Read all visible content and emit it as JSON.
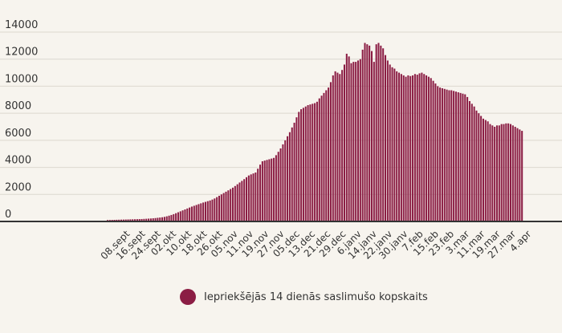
{
  "chart_data": {
    "type": "bar",
    "x_ticks": [
      "08.sept",
      "16.sept",
      "24.sept",
      "02.okt",
      "10.okt",
      "18.okt",
      "26.okt",
      "05.nov",
      "11.nov",
      "19.nov",
      "27.nov",
      "05.dec",
      "13.dec",
      "21.dec",
      "29.dec",
      "6.janv",
      "14.janv",
      "22.janv",
      "30.janv",
      "7.feb",
      "15.feb",
      "23.feb",
      "3.mar",
      "11.mar",
      "19.mar",
      "27.mar",
      "4.apr"
    ],
    "ylim": [
      0,
      14000
    ],
    "y_ticks": [
      0,
      2000,
      4000,
      6000,
      8000,
      10000,
      12000,
      14000
    ],
    "grid": "horizontal",
    "series": [
      {
        "name": "Iepriekšējās 14 dienās saslimušo kopskaits",
        "color": "#8b1d44",
        "values": [
          105,
          110,
          115,
          120,
          125,
          130,
          135,
          140,
          145,
          150,
          155,
          160,
          165,
          170,
          175,
          180,
          190,
          200,
          210,
          220,
          235,
          250,
          270,
          290,
          310,
          340,
          380,
          430,
          480,
          540,
          610,
          680,
          750,
          820,
          890,
          960,
          1030,
          1100,
          1160,
          1220,
          1280,
          1340,
          1400,
          1450,
          1500,
          1550,
          1620,
          1700,
          1800,
          1900,
          2000,
          2100,
          2200,
          2300,
          2400,
          2500,
          2620,
          2750,
          2880,
          3000,
          3130,
          3270,
          3400,
          3480,
          3550,
          3620,
          3900,
          4200,
          4450,
          4500,
          4550,
          4600,
          4650,
          4700,
          4900,
          5150,
          5400,
          5700,
          6000,
          6300,
          6600,
          6950,
          7300,
          7700,
          8100,
          8300,
          8400,
          8500,
          8600,
          8650,
          8700,
          8750,
          8850,
          9100,
          9300,
          9500,
          9700,
          9900,
          10300,
          10800,
          11100,
          11000,
          10900,
          11200,
          11600,
          12400,
          12200,
          11700,
          11800,
          11800,
          11900,
          12000,
          12700,
          13200,
          13100,
          13000,
          12600,
          11800,
          13100,
          13200,
          13000,
          12800,
          12300,
          11900,
          11600,
          11400,
          11300,
          11100,
          11000,
          10900,
          10800,
          10700,
          10800,
          10750,
          10800,
          10900,
          10850,
          10950,
          11000,
          10900,
          10800,
          10700,
          10600,
          10400,
          10200,
          10000,
          9900,
          9850,
          9800,
          9750,
          9700,
          9700,
          9650,
          9600,
          9550,
          9500,
          9450,
          9400,
          9200,
          8900,
          8700,
          8500,
          8200,
          8000,
          7800,
          7600,
          7500,
          7400,
          7200,
          7100,
          7000,
          7100,
          7100,
          7200,
          7200,
          7250,
          7250,
          7200,
          7100,
          7000,
          6900,
          6800,
          6700
        ]
      }
    ]
  },
  "legend": {
    "label": "Iepriekšējās 14 dienās saslimušo kopskaits",
    "color": "#8b1d44"
  }
}
